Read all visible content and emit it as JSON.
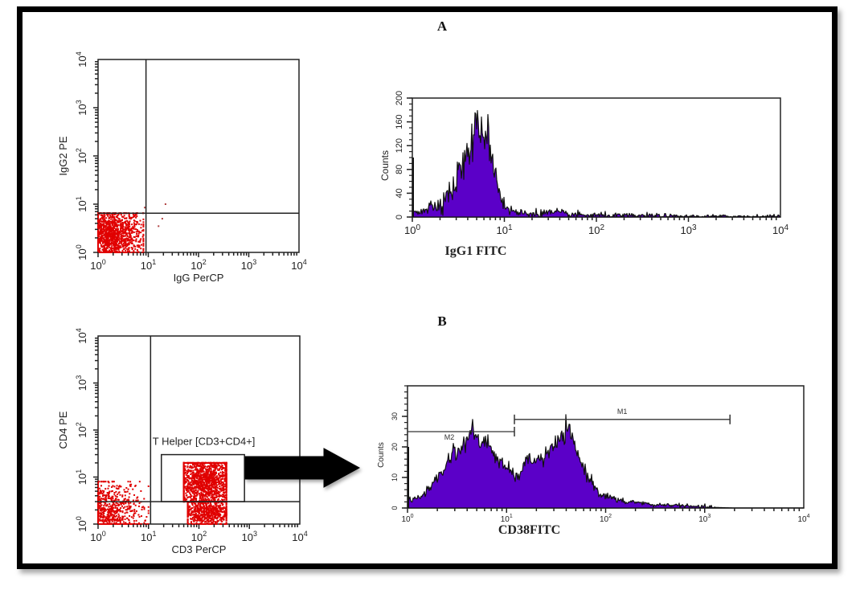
{
  "figure": {
    "panel_a_label": "A",
    "panel_b_label": "B"
  },
  "colors": {
    "dot": "#e00000",
    "fill": "#5b00c8",
    "outline": "#111111",
    "frame": "#000000"
  },
  "chart_data": [
    {
      "id": "scatter-a",
      "type": "scatter",
      "title": "",
      "xlabel": "IgG PerCP",
      "ylabel": "IgG2 PE",
      "xscale": "log",
      "yscale": "log",
      "xlim": [
        1,
        10000
      ],
      "ylim": [
        1,
        10000
      ],
      "x_ticks": [
        {
          "base": "10",
          "exp": "0"
        },
        {
          "base": "10",
          "exp": "1"
        },
        {
          "base": "10",
          "exp": "2"
        },
        {
          "base": "10",
          "exp": "3"
        },
        {
          "base": "10",
          "exp": "4"
        }
      ],
      "y_ticks": [
        {
          "base": "10",
          "exp": "0"
        },
        {
          "base": "10",
          "exp": "1"
        },
        {
          "base": "10",
          "exp": "2"
        },
        {
          "base": "10",
          "exp": "3"
        },
        {
          "base": "10",
          "exp": "4"
        }
      ],
      "quadrant_gate": {
        "x": 9,
        "y": 6.5
      },
      "populations": [
        {
          "name": "double-negative",
          "x_range": [
            1,
            8
          ],
          "y_range": [
            1,
            6.5
          ],
          "center": [
            1.8,
            2.2
          ],
          "n": 1400
        }
      ],
      "outliers": [
        [
          22,
          10
        ],
        [
          19,
          5
        ],
        [
          16,
          3.5
        ],
        [
          8.5,
          8.5
        ]
      ]
    },
    {
      "id": "hist-a",
      "type": "area",
      "title": "",
      "xlabel": "IgG1 FITC",
      "ylabel": "Counts",
      "xscale": "log",
      "xlim": [
        1,
        10000
      ],
      "ylim": [
        0,
        200
      ],
      "x_ticks": [
        {
          "base": "10",
          "exp": "0"
        },
        {
          "base": "10",
          "exp": "1"
        },
        {
          "base": "10",
          "exp": "2"
        },
        {
          "base": "10",
          "exp": "3"
        },
        {
          "base": "10",
          "exp": "4"
        }
      ],
      "y_ticks": [
        "0",
        "40",
        "80",
        "120",
        "160",
        "200"
      ],
      "series": [
        {
          "name": "IgG1 FITC",
          "x": [
            1.0,
            1.2,
            1.4,
            1.6,
            1.8,
            2.0,
            2.2,
            2.5,
            2.8,
            3.0,
            3.2,
            3.5,
            3.8,
            4.0,
            4.5,
            5.0,
            5.3,
            5.6,
            6.0,
            6.4,
            6.8,
            7.2,
            7.8,
            8.5,
            9.2,
            10,
            11,
            12,
            14,
            17,
            20,
            25,
            30,
            40,
            50,
            70,
            100,
            150,
            200,
            300,
            500,
            700,
            1000,
            2000,
            5000,
            10000
          ],
          "y": [
            8,
            12,
            14,
            18,
            20,
            25,
            30,
            42,
            48,
            58,
            80,
            85,
            98,
            110,
            125,
            150,
            145,
            148,
            150,
            140,
            128,
            110,
            85,
            55,
            35,
            20,
            14,
            10,
            7,
            6,
            6,
            6,
            7,
            6,
            4,
            3,
            3,
            2,
            2,
            2,
            2,
            1,
            1,
            1,
            1,
            1
          ]
        }
      ]
    },
    {
      "id": "scatter-b",
      "type": "scatter",
      "title": "",
      "xlabel": "CD3 PerCP",
      "ylabel": "CD4 PE",
      "xscale": "log",
      "yscale": "log",
      "xlim": [
        1,
        10000
      ],
      "ylim": [
        1,
        10000
      ],
      "x_ticks": [
        {
          "base": "10",
          "exp": "0"
        },
        {
          "base": "10",
          "exp": "1"
        },
        {
          "base": "10",
          "exp": "2"
        },
        {
          "base": "10",
          "exp": "3"
        },
        {
          "base": "10",
          "exp": "4"
        }
      ],
      "y_ticks": [
        {
          "base": "10",
          "exp": "0"
        },
        {
          "base": "10",
          "exp": "1"
        },
        {
          "base": "10",
          "exp": "2"
        },
        {
          "base": "10",
          "exp": "3"
        },
        {
          "base": "10",
          "exp": "4"
        }
      ],
      "quadrant_gate": {
        "x": 11,
        "y": 3
      },
      "region_gate": {
        "label": "T Helper [CD3+CD4+]",
        "x_range": [
          18,
          800
        ],
        "y_range": [
          3,
          30
        ]
      },
      "populations": [
        {
          "name": "CD3-negative",
          "x_range": [
            1,
            10
          ],
          "y_range": [
            1,
            8
          ],
          "center": [
            1.5,
            1.8
          ],
          "n": 900
        },
        {
          "name": "CD3+CD4+",
          "x_range": [
            50,
            350
          ],
          "y_range": [
            3,
            20
          ],
          "center": [
            130,
            8
          ],
          "n": 1400
        },
        {
          "name": "CD3+CD4-",
          "x_range": [
            60,
            350
          ],
          "y_range": [
            1,
            3
          ],
          "center": [
            140,
            1.8
          ],
          "n": 700
        }
      ]
    },
    {
      "id": "hist-b",
      "type": "area",
      "title": "",
      "xlabel": "CD38FITC",
      "ylabel": "Counts",
      "xscale": "log",
      "xlim": [
        1,
        10000
      ],
      "ylim": [
        0,
        40
      ],
      "x_ticks": [
        {
          "base": "10",
          "exp": "0"
        },
        {
          "base": "10",
          "exp": "1"
        },
        {
          "base": "10",
          "exp": "2"
        },
        {
          "base": "10",
          "exp": "3"
        },
        {
          "base": "10",
          "exp": "4"
        }
      ],
      "y_ticks": [
        "0",
        "10",
        "20",
        "30"
      ],
      "markers": [
        {
          "label": "M1",
          "x_range": [
            12,
            1800
          ],
          "y": 29
        },
        {
          "label": "M2",
          "x_range": [
            1,
            12
          ],
          "y": 25
        }
      ],
      "series": [
        {
          "name": "CD38 FITC",
          "x": [
            1.0,
            1.2,
            1.4,
            1.6,
            1.8,
            2.0,
            2.3,
            2.6,
            2.9,
            3.2,
            3.6,
            4.0,
            4.5,
            5.0,
            5.5,
            6.0,
            6.6,
            7.2,
            8.0,
            9.0,
            10,
            11,
            12,
            13,
            14,
            16,
            18,
            20,
            23,
            26,
            30,
            34,
            38,
            42,
            46,
            52,
            58,
            65,
            75,
            85,
            100,
            120,
            150,
            200,
            300,
            500,
            700,
            1000,
            2000,
            10000
          ],
          "y": [
            2,
            3,
            4,
            6,
            8,
            10,
            12,
            16,
            19,
            18,
            20,
            23,
            26,
            22,
            21,
            22,
            21,
            19,
            16,
            14,
            13,
            12,
            11,
            9,
            13,
            15,
            16,
            16,
            16,
            18,
            20,
            22,
            24,
            26,
            22,
            18,
            14,
            11,
            8,
            5,
            4,
            3,
            2,
            2,
            1,
            1,
            0.5,
            0.3,
            0,
            0
          ]
        }
      ]
    }
  ]
}
